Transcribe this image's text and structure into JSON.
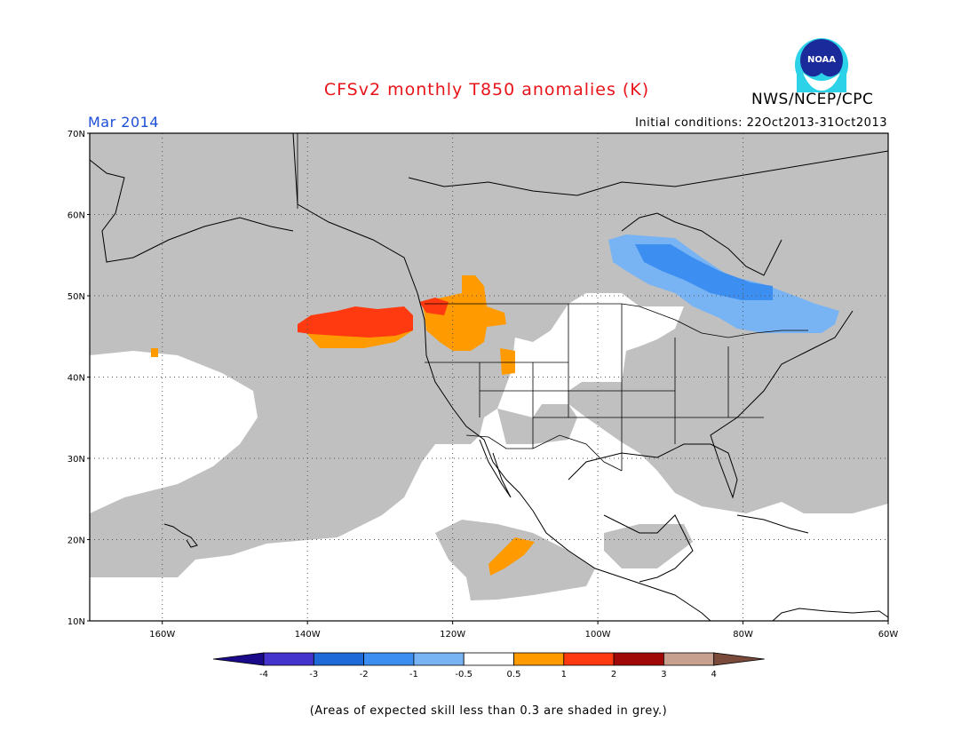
{
  "header": {
    "title": "CFSv2 monthly T850 anomalies (K)",
    "agency": "NWS/NCEP/CPC",
    "month": "Mar 2014",
    "initial_conditions": "Initial conditions: 22Oct2013-31Oct2013",
    "logo_text": "NOAA"
  },
  "map": {
    "lat_labels": [
      "70N",
      "60N",
      "50N",
      "40N",
      "30N",
      "20N",
      "10N"
    ],
    "lon_labels": [
      "160W",
      "140W",
      "120W",
      "100W",
      "80W",
      "60W"
    ],
    "lat_range": [
      10,
      70
    ],
    "lon_range": [
      -170,
      -60
    ]
  },
  "legend": {
    "labels": [
      "-4",
      "-3",
      "-2",
      "-1",
      "-0.5",
      "0.5",
      "1",
      "2",
      "3",
      "4"
    ],
    "colors": [
      "#1a0a8a",
      "#4433cc",
      "#1e6ad8",
      "#3c8ff0",
      "#78b4f4",
      "#ffffff",
      "#ff9a00",
      "#ff3a10",
      "#a00808",
      "#c8a090",
      "#7a4a3a"
    ],
    "note": "(Areas of expected skill less than 0.3 are shaded in grey.)"
  },
  "colors": {
    "grey": "#c0c0c0",
    "title": "#e8141a",
    "month": "#1e4fd8"
  }
}
